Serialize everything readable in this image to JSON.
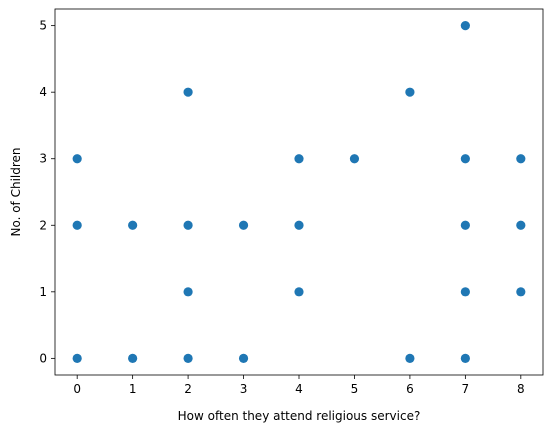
{
  "chart_data": {
    "type": "scatter",
    "xlabel": "How often they attend religious service?",
    "ylabel": "No. of Children",
    "xlim": [
      -0.4,
      8.4
    ],
    "ylim": [
      -0.25,
      5.25
    ],
    "xticks": [
      0,
      1,
      2,
      3,
      4,
      5,
      6,
      7,
      8
    ],
    "yticks": [
      0,
      1,
      2,
      3,
      4,
      5
    ],
    "grid": false,
    "marker_color": "#1f77b4",
    "points": [
      {
        "x": 0,
        "y": 0
      },
      {
        "x": 0,
        "y": 2
      },
      {
        "x": 0,
        "y": 3
      },
      {
        "x": 1,
        "y": 0
      },
      {
        "x": 1,
        "y": 2
      },
      {
        "x": 2,
        "y": 0
      },
      {
        "x": 2,
        "y": 1
      },
      {
        "x": 2,
        "y": 2
      },
      {
        "x": 2,
        "y": 4
      },
      {
        "x": 3,
        "y": 0
      },
      {
        "x": 3,
        "y": 2
      },
      {
        "x": 4,
        "y": 1
      },
      {
        "x": 4,
        "y": 2
      },
      {
        "x": 4,
        "y": 3
      },
      {
        "x": 5,
        "y": 3
      },
      {
        "x": 6,
        "y": 0
      },
      {
        "x": 6,
        "y": 4
      },
      {
        "x": 7,
        "y": 0
      },
      {
        "x": 7,
        "y": 1
      },
      {
        "x": 7,
        "y": 2
      },
      {
        "x": 7,
        "y": 3
      },
      {
        "x": 7,
        "y": 5
      },
      {
        "x": 8,
        "y": 1
      },
      {
        "x": 8,
        "y": 2
      },
      {
        "x": 8,
        "y": 3
      }
    ]
  }
}
